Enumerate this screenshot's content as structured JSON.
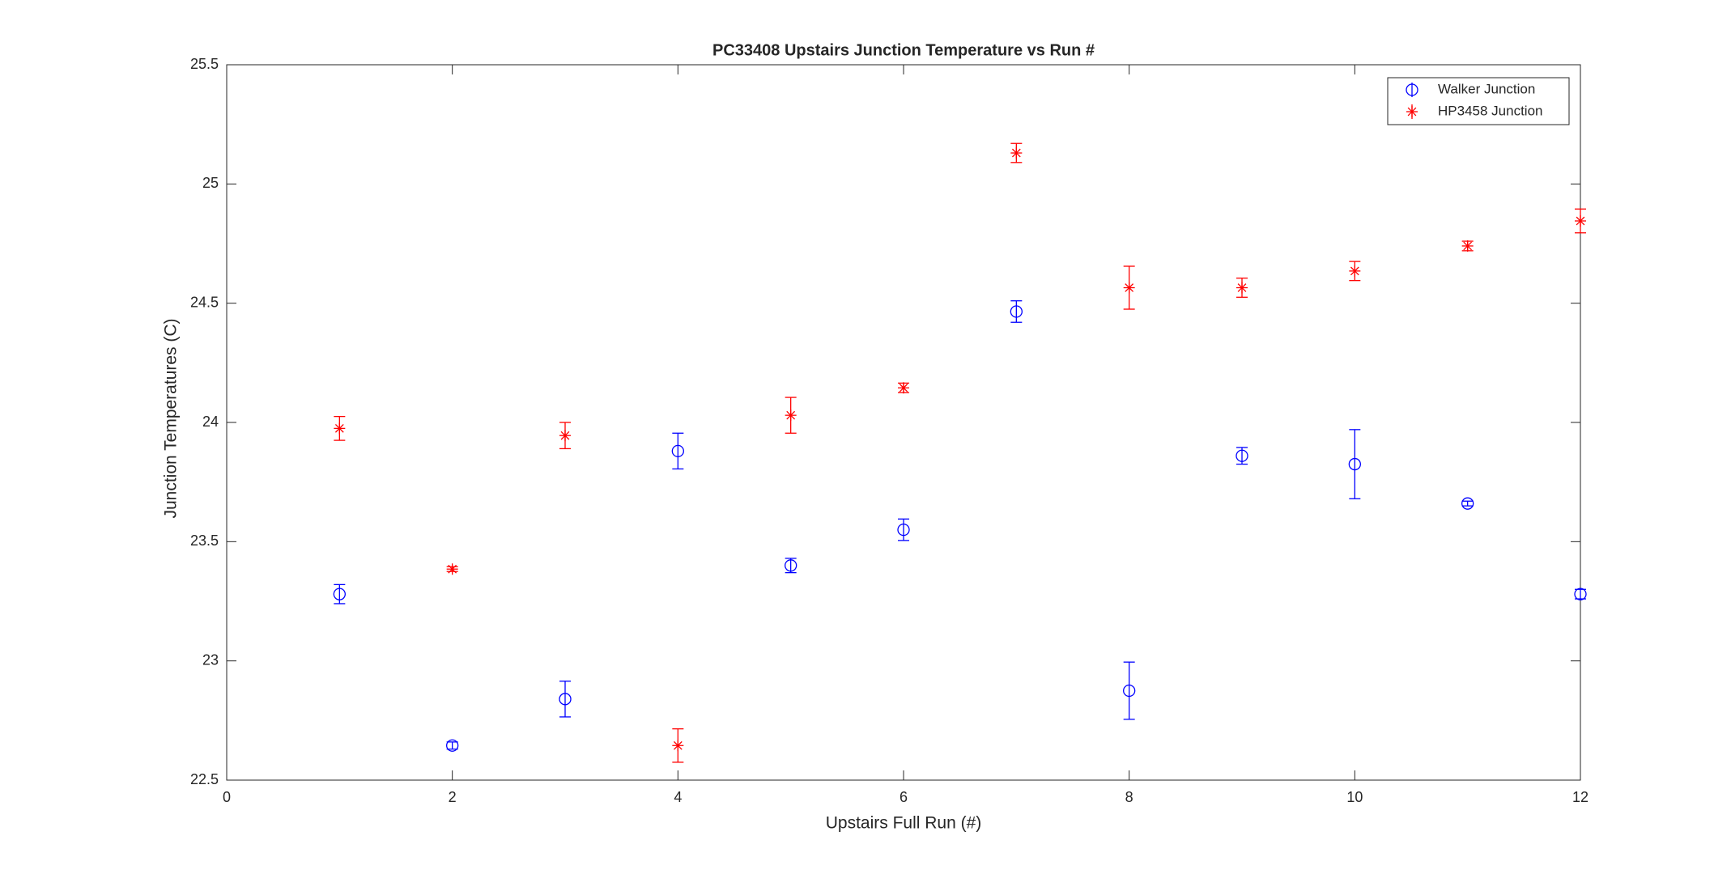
{
  "chart_data": {
    "type": "errorbar",
    "title": "PC33408 Upstairs Junction Temperature vs Run #",
    "x_label": "Upstairs Full Run (#)",
    "y_label": "Junction Temperatures (C)",
    "x": [
      1,
      2,
      3,
      4,
      5,
      6,
      7,
      8,
      9,
      10,
      11,
      12
    ],
    "series": [
      {
        "name": "Walker Junction",
        "color": "#0000ff",
        "marker": "o",
        "values": [
          23.28,
          22.645,
          22.84,
          23.88,
          23.4,
          23.55,
          24.465,
          22.875,
          23.86,
          23.825,
          23.66,
          23.28
        ],
        "errors": [
          0.04,
          0.015,
          0.075,
          0.075,
          0.03,
          0.045,
          0.045,
          0.12,
          0.035,
          0.145,
          0.01,
          0.02
        ]
      },
      {
        "name": "HP3458 Junction",
        "color": "#ff0000",
        "marker": "*",
        "values": [
          23.975,
          23.385,
          23.945,
          22.645,
          24.03,
          24.145,
          25.13,
          24.565,
          24.565,
          24.635,
          24.74,
          24.845
        ],
        "errors": [
          0.05,
          0.01,
          0.055,
          0.07,
          0.075,
          0.02,
          0.04,
          0.09,
          0.04,
          0.04,
          0.02,
          0.05
        ]
      }
    ],
    "xlim": [
      0,
      12
    ],
    "xticks": [
      0,
      2,
      4,
      6,
      8,
      10,
      12
    ],
    "ylim": [
      22.5,
      25.5
    ],
    "yticks": [
      22.5,
      23,
      23.5,
      24,
      24.5,
      25,
      25.5
    ],
    "legend": "upper right"
  }
}
